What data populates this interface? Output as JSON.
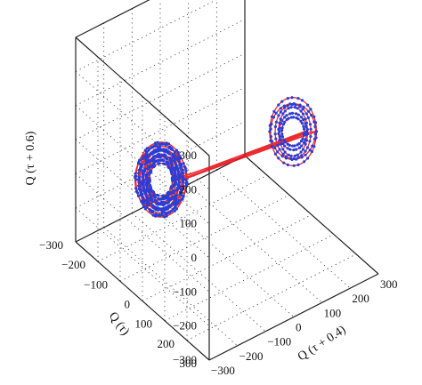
{
  "chart_data": {
    "type": "line",
    "dimensions": 3,
    "title": "",
    "xlabel": "Q (τ + 0.4)",
    "ylabel": "Q (τ)",
    "zlabel": "Q (τ + 0.6)",
    "xlim": [
      -300,
      300
    ],
    "ylim": [
      -300,
      300
    ],
    "zlim": [
      -300,
      300
    ],
    "x_ticks": [
      "−300",
      "−200",
      "−100",
      "0",
      "100",
      "200",
      "300"
    ],
    "y_ticks": [
      "−300",
      "−200",
      "−100",
      "0",
      "100",
      "200",
      "300"
    ],
    "z_ticks": [
      "−300",
      "−200",
      "−100",
      "0",
      "100",
      "200",
      "300"
    ],
    "grid": true,
    "legend": "none",
    "series": [
      {
        "color": "#e8141c",
        "marker_color": "#2a3ed6",
        "marker": "dot",
        "loops": [
          {
            "cx": -175,
            "cy": -75,
            "cz": -40,
            "rx": 75,
            "rz": 110,
            "n": 32
          },
          {
            "cx": 175,
            "cy": 75,
            "cz": 40,
            "rx": 70,
            "rz": 100,
            "n": 12
          }
        ]
      }
    ]
  },
  "icons": {
    "data_marker": "dot"
  }
}
